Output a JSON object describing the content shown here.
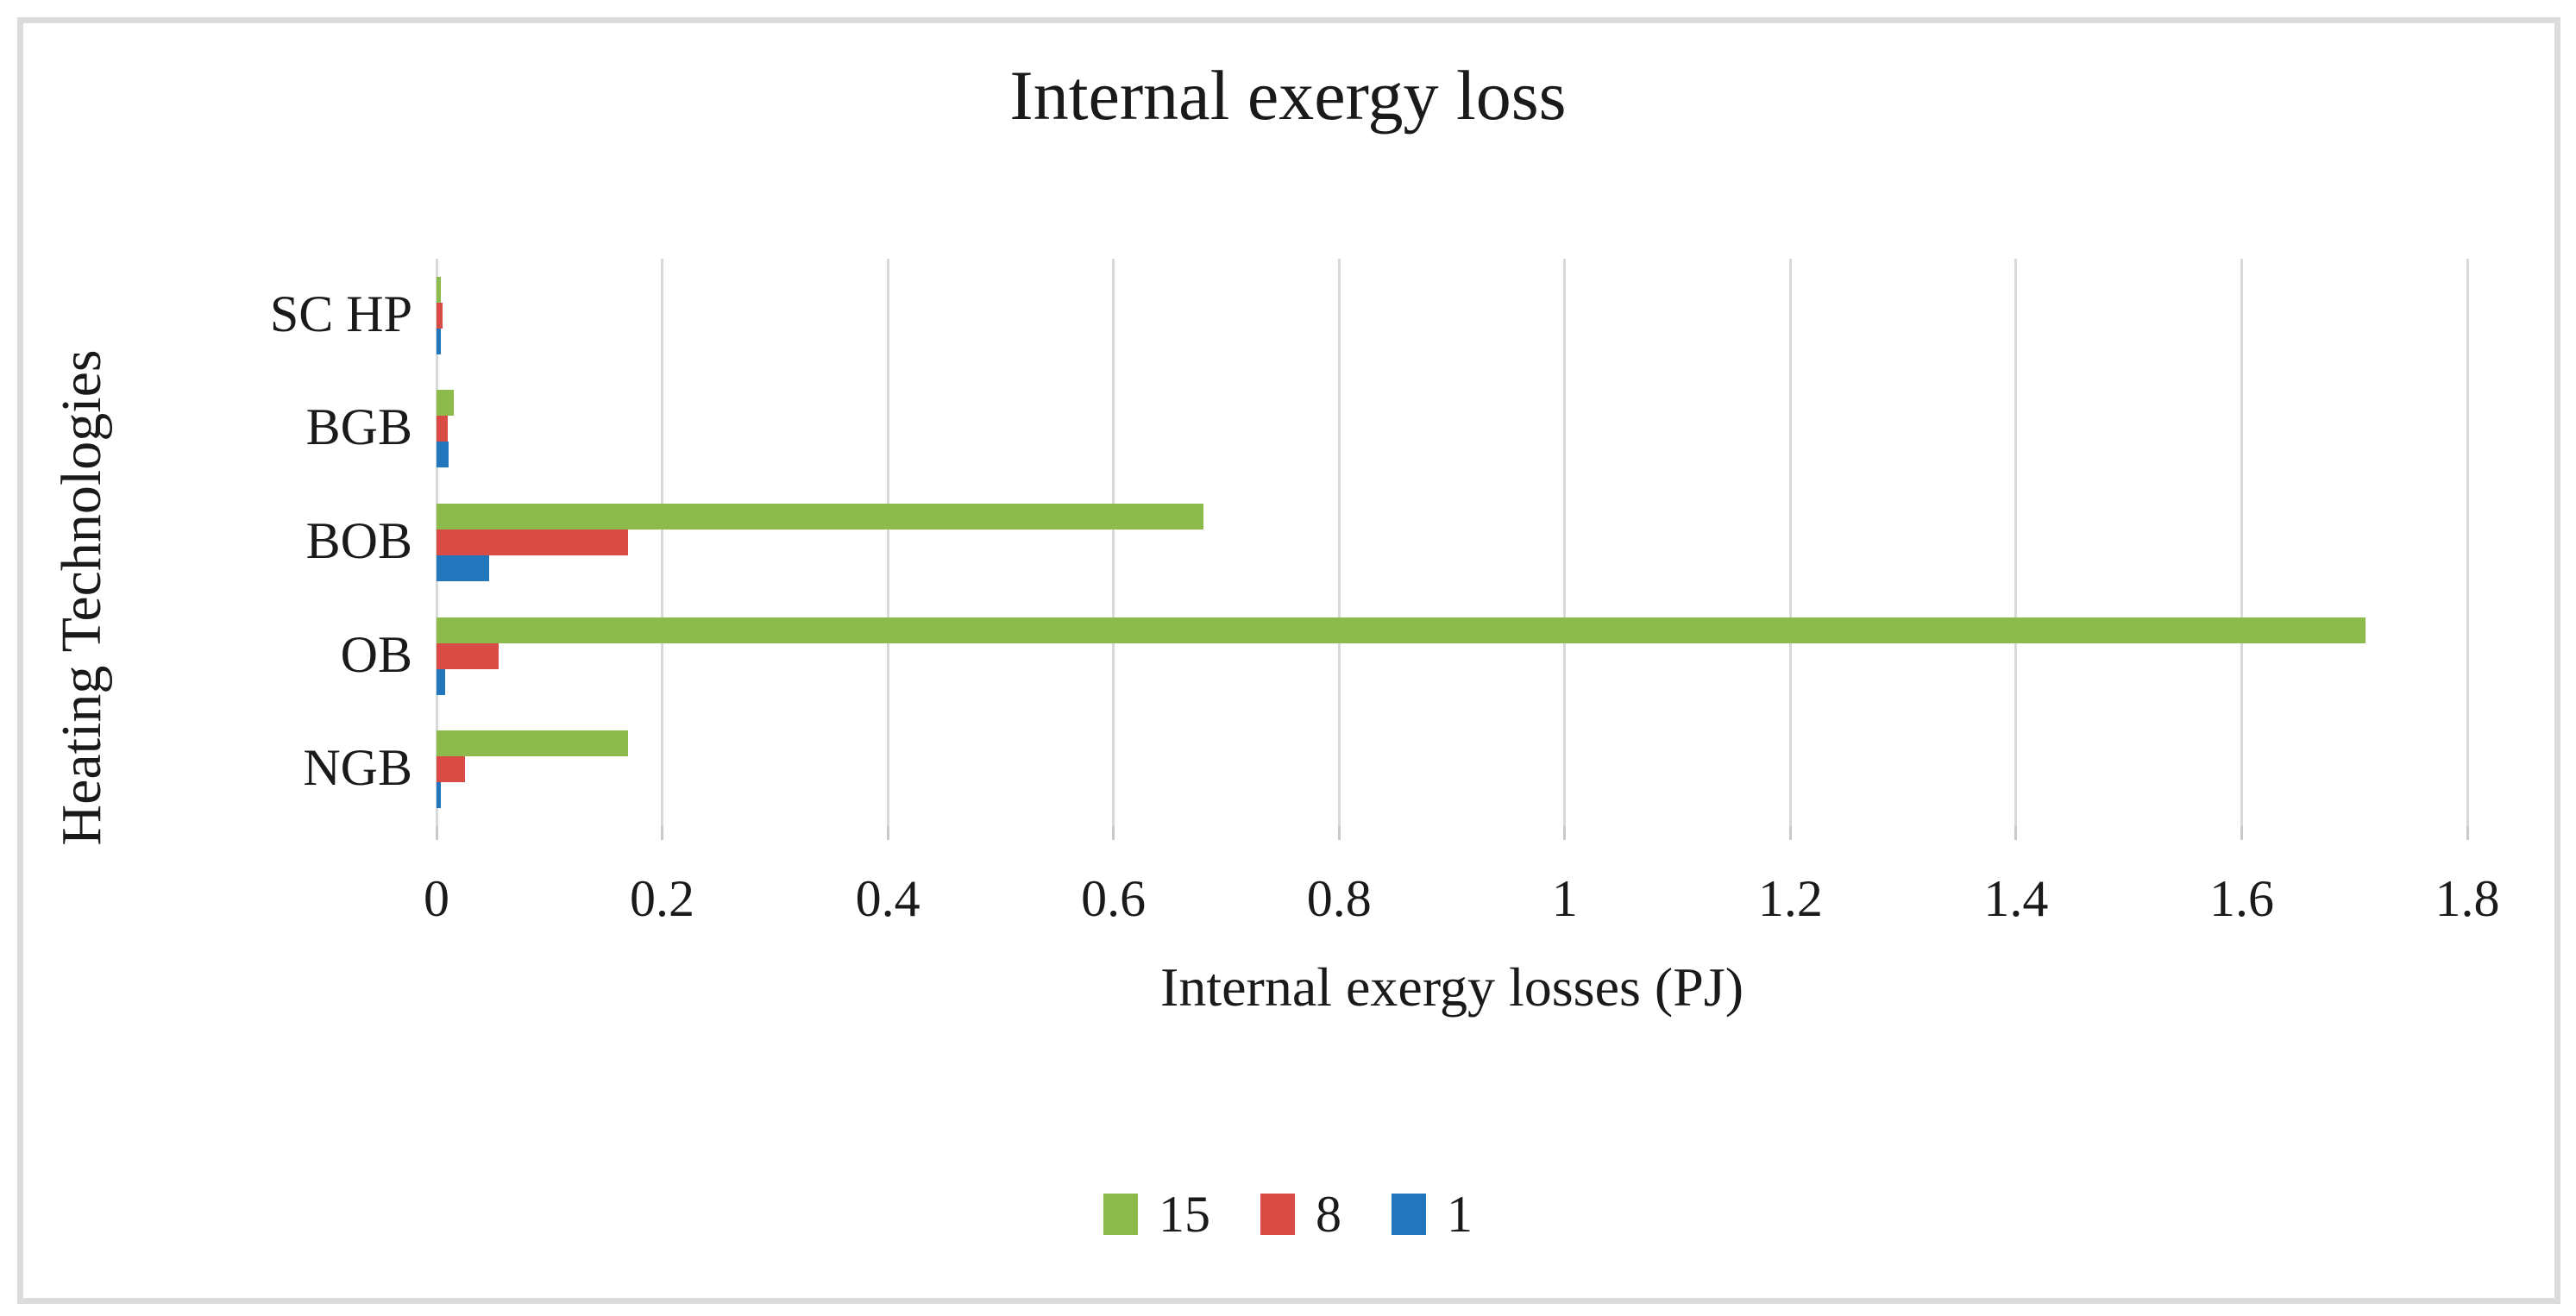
{
  "figure": {
    "background": "#FFFFFF",
    "border_color": "#DCDCDC"
  },
  "chart_data": {
    "type": "bar",
    "orientation": "horizontal",
    "title": "Internal exergy loss",
    "xlabel": "Internal exergy losses (PJ)",
    "ylabel": "Heating Technologies",
    "categories": [
      "SC HP",
      "BGB",
      "BOB",
      "OB",
      "NGB"
    ],
    "series": [
      {
        "name": "15",
        "color": "#8DBB4B",
        "values": [
          0.004,
          0.015,
          0.68,
          1.71,
          0.17
        ]
      },
      {
        "name": "8",
        "color": "#D94C45",
        "values": [
          0.005,
          0.01,
          0.17,
          0.055,
          0.025
        ]
      },
      {
        "name": "1",
        "color": "#2277BC",
        "values": [
          0.004,
          0.011,
          0.047,
          0.008,
          0.004
        ]
      }
    ],
    "xlim": [
      0,
      1.8
    ],
    "xticks": [
      "0",
      "0.2",
      "0.4",
      "0.6",
      "0.8",
      "1",
      "1.2",
      "1.4",
      "1.6",
      "1.8"
    ],
    "grid": true,
    "gridline_color": "#D9D9D9",
    "legend_position": "bottom",
    "legend_entries": [
      "15",
      "8",
      "1"
    ]
  }
}
